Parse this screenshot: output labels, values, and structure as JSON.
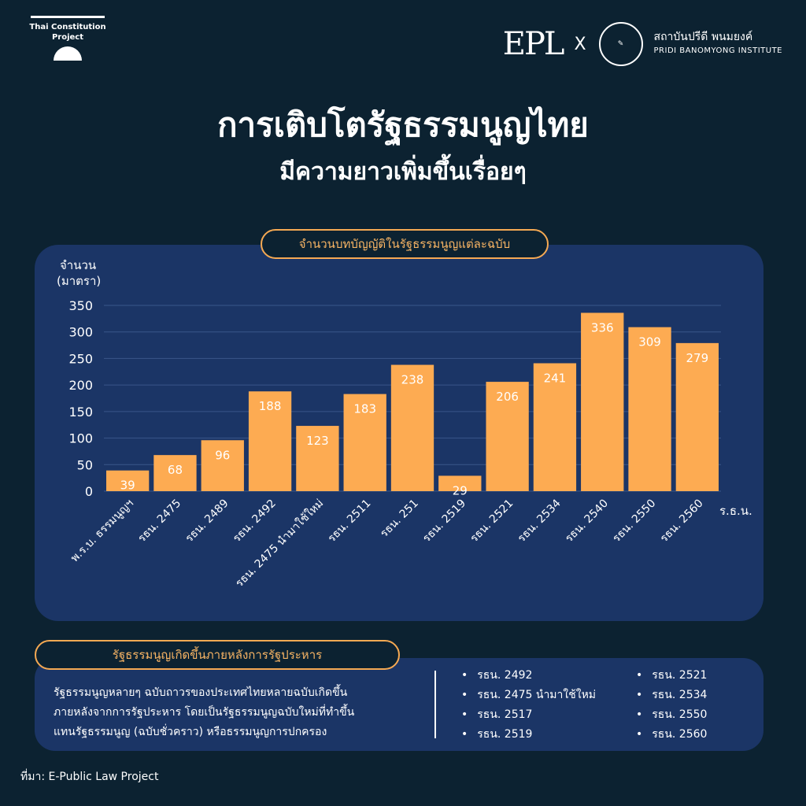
{
  "brand": {
    "tcp_line1": "Thai Constitution",
    "tcp_line2": "Project",
    "epl": "EPL",
    "cross": "X",
    "institute_th": "สถาบันปรีดี พนมยงค์",
    "institute_en": "PRIDI BANOMYONG INSTITUTE"
  },
  "title": "การเติบโตรัฐธรรมนูญไทย",
  "subtitle": "มีความยาวเพิ่มขึ้นเรื่อยๆ",
  "chart_data": {
    "type": "bar",
    "title": "จำนวนบทบัญญัติในรัฐธรรมนูญแต่ละฉบับ",
    "ylabel_line1": "จำนวน",
    "ylabel_line2": "(มาตรา)",
    "xlabel": "ร.ธ.น.",
    "ylim": [
      0,
      350
    ],
    "yticks": [
      0,
      50,
      100,
      150,
      200,
      250,
      300,
      350
    ],
    "grid": true,
    "categories": [
      "พ.ร.บ. ธรรมนูญฯ",
      "รธน. 2475",
      "รธน. 2489",
      "รธน. 2492",
      "รธน. 2475 นำมาใช้ใหม่",
      "รธน. 2511",
      "รธน. 251",
      "รธน. 2519",
      "รธน. 2521",
      "รธน. 2534",
      "รธน. 2540",
      "รธน. 2550",
      "รธน. 2560"
    ],
    "values": [
      39,
      68,
      96,
      188,
      123,
      183,
      238,
      29,
      206,
      241,
      336,
      309,
      279
    ],
    "bar_color": "#fdab52"
  },
  "coup": {
    "heading": "รัฐธรรมนูญเกิดขึ้นภายหลังการรัฐประหาร",
    "desc_line1": "รัฐธรรมนูญหลายๆ ฉบับถาวรของประเทศไทยหลายฉบับเกิดขึ้น",
    "desc_line2": "ภายหลังจากการรัฐประหาร โดยเป็นรัฐธรรมนูญฉบับใหม่ที่ทำขึ้น",
    "desc_line3": "แทนรัฐธรรมนูญ (ฉบับชั่วคราว) หรือธรรมนูญการปกครอง",
    "list_left": [
      "รธน. 2492",
      "รธน. 2475 นำมาใช้ใหม่",
      "รธน. 2517",
      "รธน. 2519"
    ],
    "list_right": [
      "รธน. 2521",
      "รธน. 2534",
      "รธน. 2550",
      "รธน. 2560"
    ]
  },
  "source": "ที่มา: E-Public Law Project"
}
